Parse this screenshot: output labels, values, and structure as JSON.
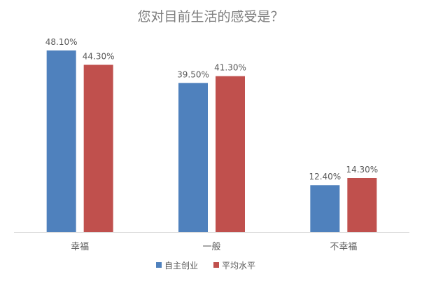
{
  "chart_data": {
    "type": "bar",
    "title": "您对目前生活的感受是？",
    "categories": [
      "幸福",
      "一般",
      "不幸福"
    ],
    "series": [
      {
        "name": "自主创业",
        "values": [
          48.1,
          39.5,
          12.4
        ],
        "labels": [
          "48.10%",
          "39.50%",
          "12.40%"
        ],
        "color": "#4f81bd"
      },
      {
        "name": "平均水平",
        "values": [
          44.3,
          41.3,
          14.3
        ],
        "labels": [
          "44.30%",
          "41.30%",
          "14.30%"
        ],
        "color": "#c0504d"
      }
    ],
    "ylim": [
      0,
      48.1
    ],
    "grid": false,
    "legend_position": "bottom",
    "axis_color": "#d9d9d9"
  }
}
